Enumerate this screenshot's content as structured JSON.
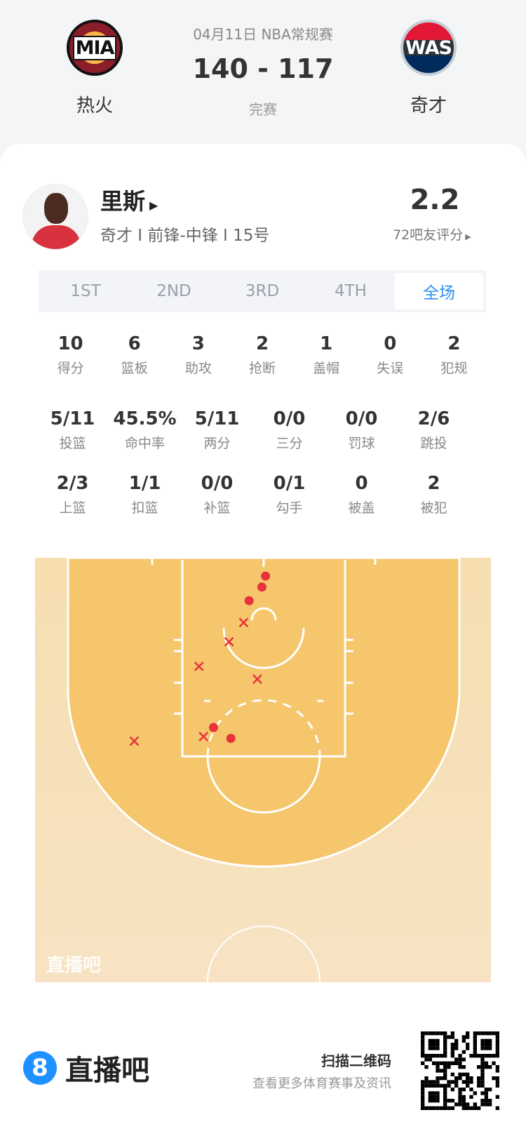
{
  "header": {
    "date_league": "04月11日 NBA常规赛",
    "score": "140 - 117",
    "status": "完赛",
    "home": {
      "abbr": "MIA",
      "name": "热火",
      "colors": [
        "#98002e",
        "#f9a01b",
        "#000000"
      ]
    },
    "away": {
      "abbr": "WAS",
      "name": "奇才",
      "colors": [
        "#002b5c",
        "#e31837",
        "#c4ced4"
      ]
    }
  },
  "player": {
    "name": "里斯",
    "info": "奇才 I 前锋-中锋 I 15号",
    "rating": "2.2",
    "rating_label": "72吧友评分"
  },
  "tabs": [
    {
      "label": "1ST"
    },
    {
      "label": "2ND"
    },
    {
      "label": "3RD"
    },
    {
      "label": "4TH"
    },
    {
      "label": "全场",
      "active": true
    }
  ],
  "stats_row1": [
    {
      "value": "10",
      "label": "得分"
    },
    {
      "value": "6",
      "label": "篮板"
    },
    {
      "value": "3",
      "label": "助攻"
    },
    {
      "value": "2",
      "label": "抢断"
    },
    {
      "value": "1",
      "label": "盖帽"
    },
    {
      "value": "0",
      "label": "失误"
    },
    {
      "value": "2",
      "label": "犯规"
    }
  ],
  "stats_row2": [
    {
      "value": "5/11",
      "label": "投篮"
    },
    {
      "value": "45.5%",
      "label": "命中率"
    },
    {
      "value": "5/11",
      "label": "两分"
    },
    {
      "value": "0/0",
      "label": "三分"
    },
    {
      "value": "0/0",
      "label": "罚球"
    },
    {
      "value": "2/6",
      "label": "跳投"
    }
  ],
  "stats_row3": [
    {
      "value": "2/3",
      "label": "上篮"
    },
    {
      "value": "1/1",
      "label": "扣篮"
    },
    {
      "value": "0/0",
      "label": "补篮"
    },
    {
      "value": "0/1",
      "label": "勾手"
    },
    {
      "value": "0",
      "label": "被盖"
    },
    {
      "value": "2",
      "label": "被犯"
    }
  ],
  "shot_chart": {
    "watermark": "直播吧",
    "made_color": "#e8323c",
    "units": "feet from basket (x) / from baseline (y)",
    "shots": [
      {
        "x": 0.2,
        "y": 2.0,
        "made": true
      },
      {
        "x": -0.2,
        "y": 3.2,
        "made": true
      },
      {
        "x": -1.6,
        "y": 4.7,
        "made": true
      },
      {
        "x": -5.5,
        "y": 18.6,
        "made": true
      },
      {
        "x": -3.6,
        "y": 19.8,
        "made": true
      },
      {
        "x": -2.2,
        "y": 7.1,
        "made": false
      },
      {
        "x": -3.8,
        "y": 9.2,
        "made": false
      },
      {
        "x": -7.1,
        "y": 11.9,
        "made": false
      },
      {
        "x": -0.7,
        "y": 13.3,
        "made": false
      },
      {
        "x": -6.6,
        "y": 19.6,
        "made": false
      },
      {
        "x": -14.2,
        "y": 20.1,
        "made": false
      }
    ]
  },
  "footer": {
    "brand": "直播吧",
    "brand_icon": "8",
    "brand_color": "#1e90ff",
    "qr_title": "扫描二维码",
    "qr_subtitle": "查看更多体育赛事及资讯"
  }
}
